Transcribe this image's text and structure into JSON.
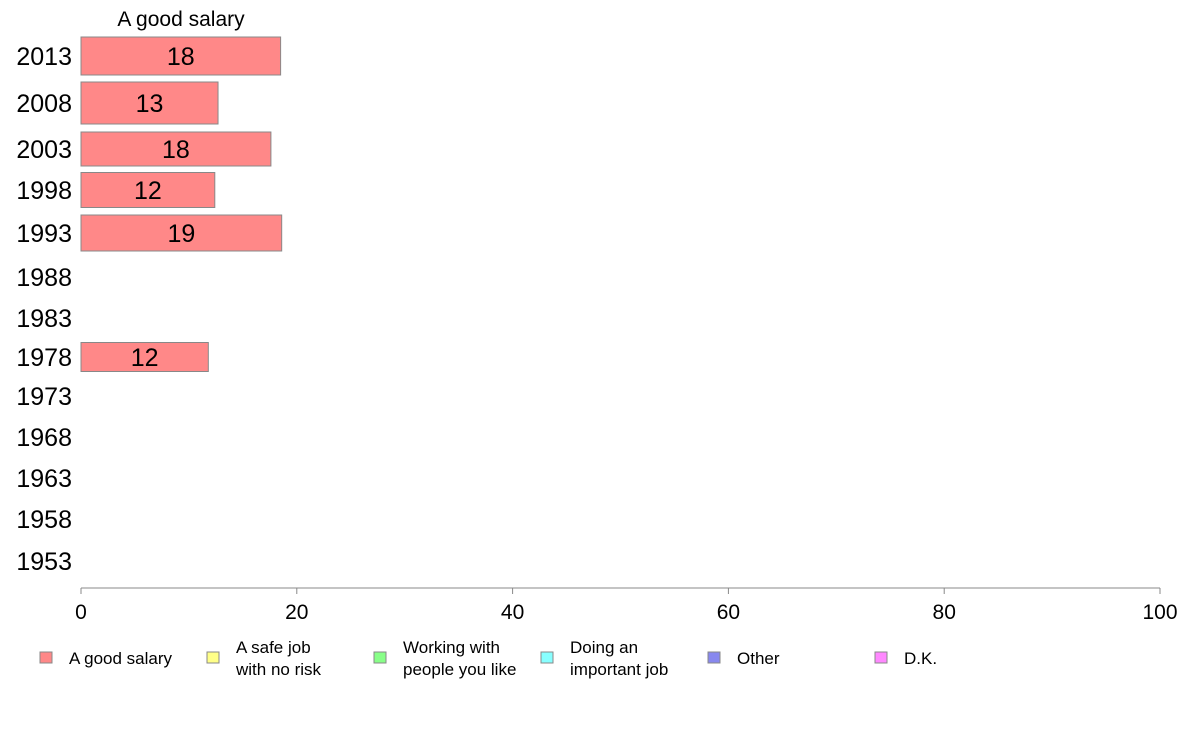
{
  "chart_data": {
    "type": "bar",
    "orientation": "horizontal",
    "panel_title": "A good salary",
    "categories": [
      "2013",
      "2008",
      "2003",
      "1998",
      "1993",
      "1988",
      "1983",
      "1978",
      "1973",
      "1968",
      "1963",
      "1958",
      "1953"
    ],
    "series": [
      {
        "name": "A good salary",
        "values": [
          18.5,
          12.7,
          17.6,
          12.4,
          18.6,
          null,
          null,
          11.8,
          null,
          null,
          null,
          null,
          null
        ],
        "labels": [
          "18",
          "13",
          "18",
          "12",
          "19",
          null,
          null,
          "12",
          null,
          null,
          null,
          null,
          null
        ]
      }
    ],
    "xlim": [
      0,
      100
    ],
    "xticks": [
      "0",
      "20",
      "40",
      "60",
      "80",
      "100"
    ],
    "grid": false,
    "bar_color": "#ff8888",
    "legend": {
      "placement": "bottom",
      "entries": [
        {
          "lines": [
            "A good salary"
          ],
          "color": "#ff8888"
        },
        {
          "lines": [
            "A safe job",
            "with no risk"
          ],
          "color": "#ffff88"
        },
        {
          "lines": [
            "Working with",
            "people you like"
          ],
          "color": "#88ff88"
        },
        {
          "lines": [
            "Doing an",
            "important job"
          ],
          "color": "#88ffff"
        },
        {
          "lines": [
            "Other"
          ],
          "color": "#8888ee"
        },
        {
          "lines": [
            "D.K."
          ],
          "color": "#ff88ff"
        }
      ]
    }
  }
}
